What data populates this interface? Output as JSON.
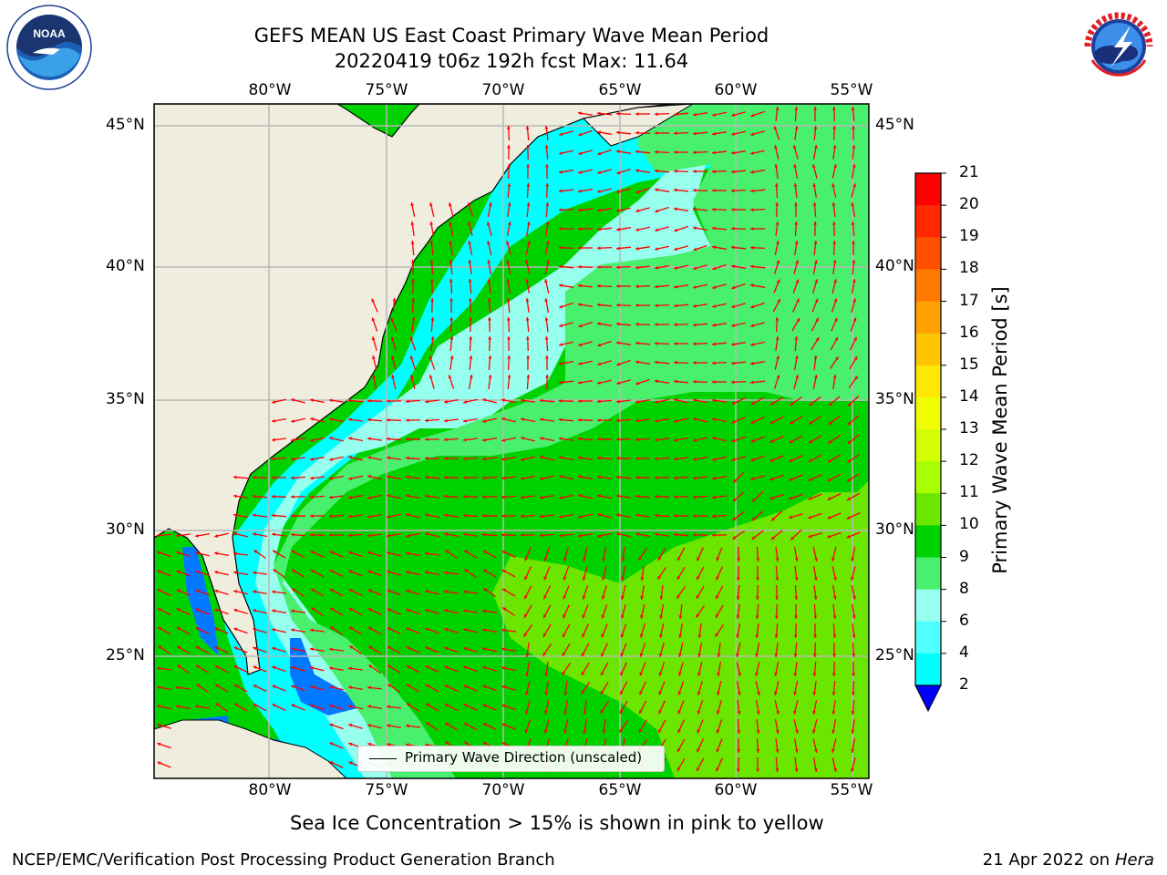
{
  "title": {
    "line1": "GEFS MEAN US East Coast Primary Wave Mean Period",
    "line2": "20220419 t06z 192h fcst   Max: 11.64"
  },
  "logos": {
    "left": "NOAA",
    "right": "NATIONAL WEATHER SERVICE"
  },
  "axes": {
    "lon_labels": [
      "80°W",
      "75°W",
      "70°W",
      "65°W",
      "60°W",
      "55°W"
    ],
    "lat_labels": [
      "45°N",
      "40°N",
      "35°N",
      "30°N",
      "25°N"
    ]
  },
  "colorbar": {
    "label": "Primary Wave Mean Period [s]",
    "ticks": [
      "21",
      "20",
      "19",
      "18",
      "17",
      "16",
      "15",
      "14",
      "13",
      "12",
      "11",
      "10",
      "9",
      "8",
      "6",
      "4",
      "2"
    ],
    "colors": [
      "#ff0000",
      "#ff2800",
      "#ff5000",
      "#ff7800",
      "#ff9f00",
      "#ffc400",
      "#ffe800",
      "#f0ff00",
      "#d4ff00",
      "#a8ff00",
      "#6ae600",
      "#00d200",
      "#48f06e",
      "#96ffee",
      "#50ffff",
      "#00ffff",
      "#00d2ff",
      "#0078ff",
      "#0000ff"
    ]
  },
  "legend": {
    "label": "Primary Wave Direction (unscaled)"
  },
  "notes": {
    "sea_ice": "Sea Ice Concentration > 15% is shown in pink to yellow"
  },
  "footer": {
    "left": "NCEP/EMC/Verification Post Processing Product Generation Branch",
    "right_date": "21 Apr 2022 on ",
    "right_host": "Hera"
  }
}
